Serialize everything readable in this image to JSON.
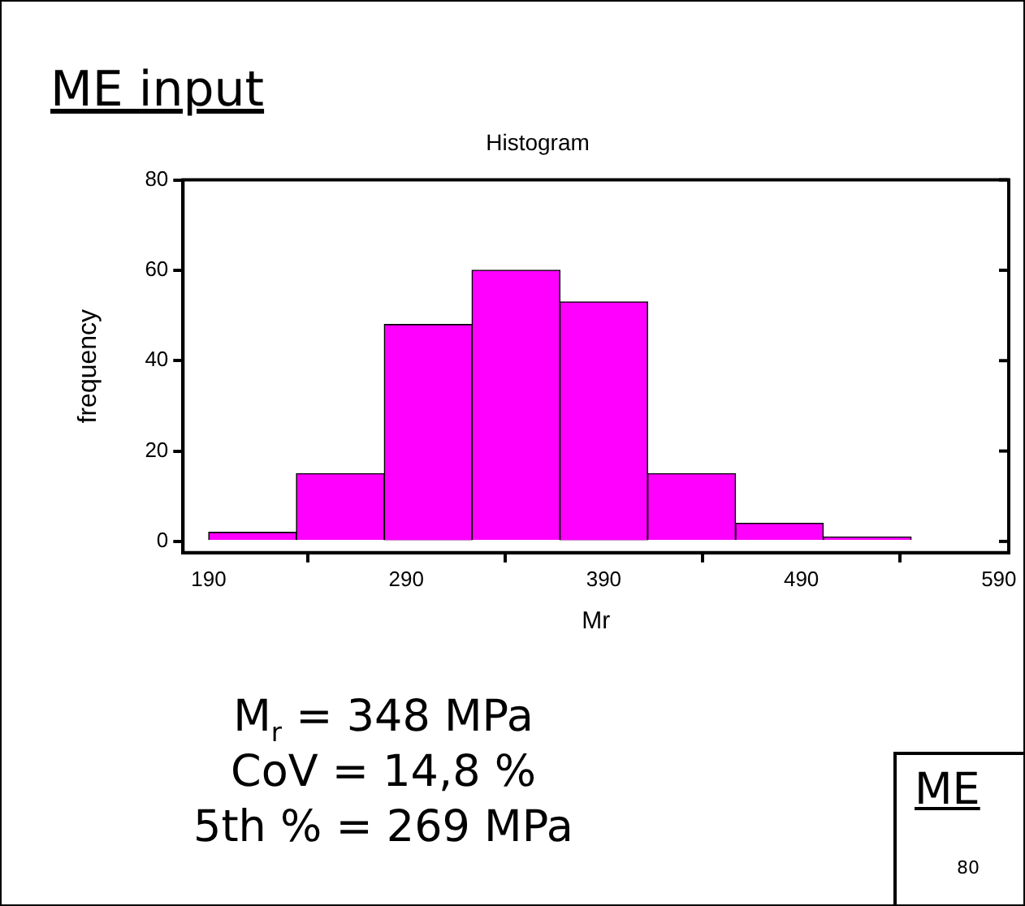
{
  "chart_data": {
    "type": "histogram",
    "title": "Histogram",
    "xlabel": "Mr",
    "ylabel": "frequency",
    "bins": [
      190,
      234.4,
      278.9,
      323.3,
      367.8,
      412.2,
      456.7,
      501.1,
      545.6,
      590
    ],
    "values": [
      2,
      15,
      48,
      60,
      53,
      15,
      4,
      1,
      0
    ],
    "color": "#ff00ff",
    "xlim": [
      177,
      595
    ],
    "xticks": [
      190,
      290,
      390,
      490,
      590
    ],
    "ylim": [
      -2.5,
      80
    ],
    "yticks": [
      0,
      20,
      40,
      60,
      80
    ],
    "grid": false,
    "legend": false,
    "annotations": [
      "ME input",
      "M$_{r}$ = 348 MPa",
      "CoV = 14,8 %",
      "5th % = 269 MPa",
      "ME",
      "80"
    ]
  }
}
